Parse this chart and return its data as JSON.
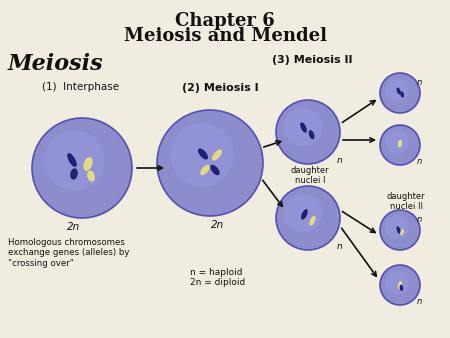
{
  "title_line1": "Chapter 6",
  "title_line2": "Meiosis and Mendel",
  "title_fontsize": 13,
  "title_fontweight": "bold",
  "bg_color": "#f0ede0",
  "label_meiosis": "Meiosis",
  "label_interphase": "(1)  Interphase",
  "label_meiosis1": "(2) Meiosis I",
  "label_meiosis2": "(3) Meiosis II",
  "label_daughter1": "daughter\nnuclei I",
  "label_daughter2": "daughter\nnuclei II",
  "label_2n_left": "2n",
  "label_2n_mid": "2n",
  "label_homologous": "Homologous chromosomes\nexchange genes (alleles) by\n\"crossing over\"",
  "label_legend": "n = haploid\n2n = diploid",
  "cell_color": "#8080cc",
  "cell_edge_color": "#4444aa",
  "chromosome_dark_blue": "#1a1a6e",
  "chromosome_yellow": "#e8e080",
  "text_color": "#111111",
  "arrow_color": "#111111"
}
